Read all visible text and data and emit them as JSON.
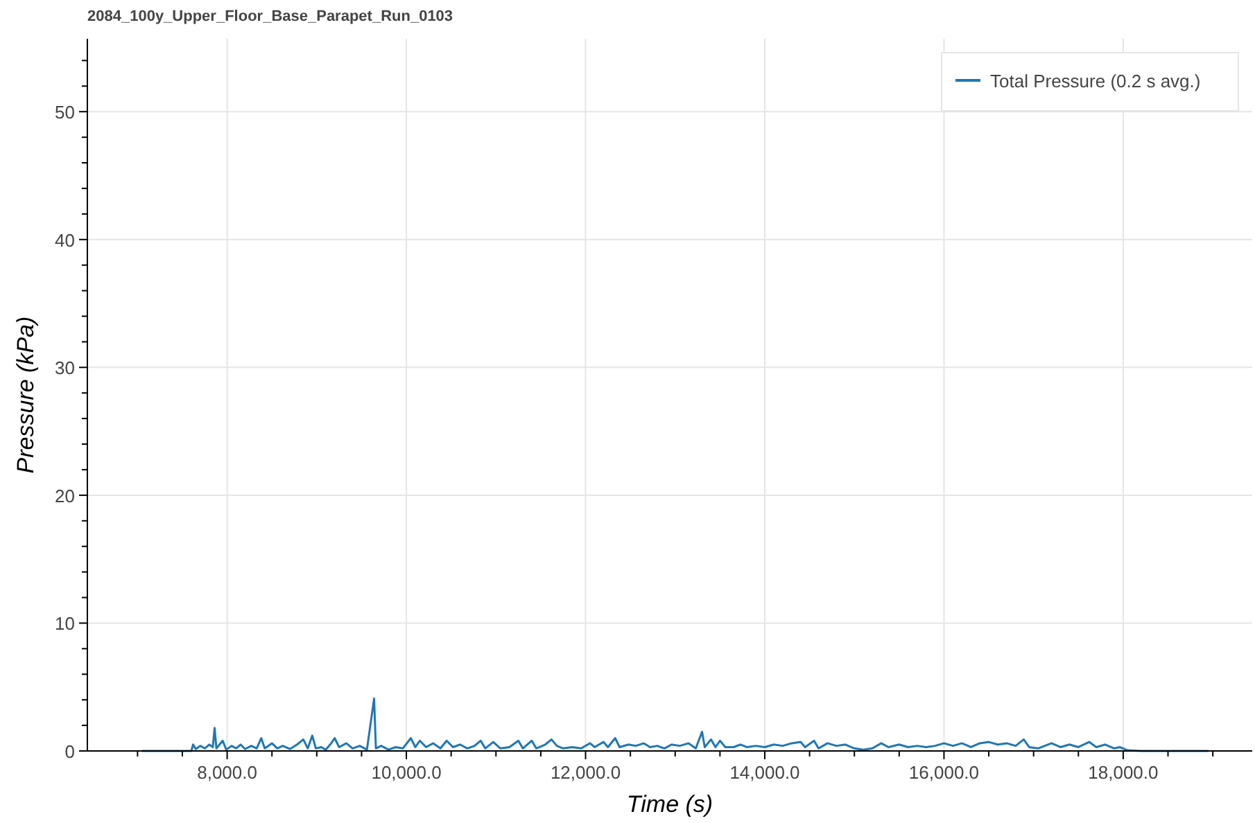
{
  "chart_data": {
    "type": "line",
    "title": "2084_100y_Upper_Floor_Base_Parapet_Run_0103",
    "xlabel": "Time (s)",
    "ylabel": "Pressure (kPa)",
    "xlim": [
      6440,
      19440
    ],
    "ylim": [
      0,
      55.7
    ],
    "xticks": [
      {
        "value": 7000,
        "label": null
      },
      {
        "value": 7500,
        "label": null
      },
      {
        "value": 8000,
        "label": "8,000.0"
      },
      {
        "value": 8500,
        "label": null
      },
      {
        "value": 9000,
        "label": null
      },
      {
        "value": 9500,
        "label": null
      },
      {
        "value": 10000,
        "label": "10,000.0"
      },
      {
        "value": 10500,
        "label": null
      },
      {
        "value": 11000,
        "label": null
      },
      {
        "value": 11500,
        "label": null
      },
      {
        "value": 12000,
        "label": "12,000.0"
      },
      {
        "value": 12500,
        "label": null
      },
      {
        "value": 13000,
        "label": null
      },
      {
        "value": 13500,
        "label": null
      },
      {
        "value": 14000,
        "label": "14,000.0"
      },
      {
        "value": 14500,
        "label": null
      },
      {
        "value": 15000,
        "label": null
      },
      {
        "value": 15500,
        "label": null
      },
      {
        "value": 16000,
        "label": "16,000.0"
      },
      {
        "value": 16500,
        "label": null
      },
      {
        "value": 17000,
        "label": null
      },
      {
        "value": 17500,
        "label": null
      },
      {
        "value": 18000,
        "label": "18,000.0"
      },
      {
        "value": 18500,
        "label": null
      },
      {
        "value": 19000,
        "label": null
      }
    ],
    "yticks": [
      0,
      {
        "value": 2,
        "label": null
      },
      {
        "value": 4,
        "label": null
      },
      {
        "value": 6,
        "label": null
      },
      {
        "value": 8,
        "label": null
      },
      10,
      {
        "value": 12,
        "label": null
      },
      {
        "value": 14,
        "label": null
      },
      {
        "value": 16,
        "label": null
      },
      {
        "value": 18,
        "label": null
      },
      20,
      {
        "value": 22,
        "label": null
      },
      {
        "value": 24,
        "label": null
      },
      {
        "value": 26,
        "label": null
      },
      {
        "value": 28,
        "label": null
      },
      30,
      {
        "value": 32,
        "label": null
      },
      {
        "value": 34,
        "label": null
      },
      {
        "value": 36,
        "label": null
      },
      {
        "value": 38,
        "label": null
      },
      40,
      {
        "value": 42,
        "label": null
      },
      {
        "value": 44,
        "label": null
      },
      {
        "value": 46,
        "label": null
      },
      {
        "value": 48,
        "label": null
      },
      50,
      {
        "value": 52,
        "label": null
      },
      {
        "value": 54,
        "label": null
      }
    ],
    "grid": true,
    "legend": "top right",
    "line_style": "solid",
    "series": [
      {
        "name": "Total Pressure (0.2 s avg.)",
        "color": "#1f77b4",
        "x": [
          7050,
          7600,
          7620,
          7650,
          7700,
          7750,
          7800,
          7840,
          7860,
          7880,
          7950,
          7990,
          8050,
          8100,
          8150,
          8200,
          8270,
          8330,
          8380,
          8420,
          8500,
          8560,
          8620,
          8700,
          8780,
          8850,
          8900,
          8950,
          8990,
          9050,
          9100,
          9150,
          9200,
          9250,
          9330,
          9400,
          9480,
          9560,
          9640,
          9660,
          9720,
          9800,
          9880,
          9960,
          10050,
          10100,
          10150,
          10220,
          10300,
          10380,
          10450,
          10520,
          10600,
          10680,
          10760,
          10830,
          10880,
          10970,
          11050,
          11150,
          11250,
          11300,
          11400,
          11450,
          11550,
          11620,
          11680,
          11750,
          11850,
          11950,
          12050,
          12100,
          12200,
          12250,
          12330,
          12380,
          12480,
          12560,
          12650,
          12720,
          12800,
          12880,
          12960,
          13050,
          13150,
          13230,
          13300,
          13330,
          13400,
          13450,
          13500,
          13560,
          13650,
          13730,
          13800,
          13900,
          14000,
          14100,
          14200,
          14300,
          14400,
          14450,
          14550,
          14600,
          14700,
          14800,
          14900,
          15000,
          15100,
          15200,
          15300,
          15380,
          15500,
          15600,
          15700,
          15800,
          15900,
          16000,
          16100,
          16200,
          16300,
          16400,
          16500,
          16600,
          16700,
          16800,
          16890,
          16950,
          17050,
          17200,
          17300,
          17400,
          17500,
          17620,
          17700,
          17800,
          17900,
          17960,
          18050,
          18200,
          18950
        ],
        "values": [
          0,
          0,
          0.5,
          0.15,
          0.4,
          0.2,
          0.5,
          0.3,
          1.8,
          0.2,
          0.8,
          0.1,
          0.4,
          0.2,
          0.5,
          0.15,
          0.4,
          0.2,
          1.0,
          0.2,
          0.6,
          0.2,
          0.4,
          0.15,
          0.5,
          0.9,
          0.2,
          1.2,
          0.2,
          0.3,
          0.1,
          0.5,
          1.0,
          0.3,
          0.6,
          0.2,
          0.4,
          0.1,
          4.1,
          0.2,
          0.4,
          0.1,
          0.3,
          0.2,
          1.0,
          0.3,
          0.8,
          0.3,
          0.6,
          0.2,
          0.8,
          0.3,
          0.5,
          0.2,
          0.4,
          0.8,
          0.2,
          0.7,
          0.2,
          0.3,
          0.8,
          0.2,
          0.8,
          0.2,
          0.5,
          0.9,
          0.4,
          0.2,
          0.3,
          0.2,
          0.6,
          0.3,
          0.7,
          0.3,
          1.0,
          0.3,
          0.5,
          0.4,
          0.6,
          0.3,
          0.4,
          0.2,
          0.5,
          0.4,
          0.6,
          0.2,
          1.5,
          0.3,
          0.9,
          0.3,
          0.8,
          0.3,
          0.3,
          0.5,
          0.3,
          0.4,
          0.3,
          0.5,
          0.4,
          0.6,
          0.7,
          0.3,
          0.8,
          0.2,
          0.6,
          0.4,
          0.5,
          0.2,
          0.1,
          0.2,
          0.6,
          0.3,
          0.5,
          0.3,
          0.4,
          0.3,
          0.4,
          0.6,
          0.4,
          0.6,
          0.3,
          0.6,
          0.7,
          0.5,
          0.6,
          0.4,
          0.9,
          0.3,
          0.2,
          0.6,
          0.3,
          0.5,
          0.3,
          0.7,
          0.3,
          0.5,
          0.2,
          0.3,
          0.05,
          0,
          0
        ]
      }
    ]
  }
}
